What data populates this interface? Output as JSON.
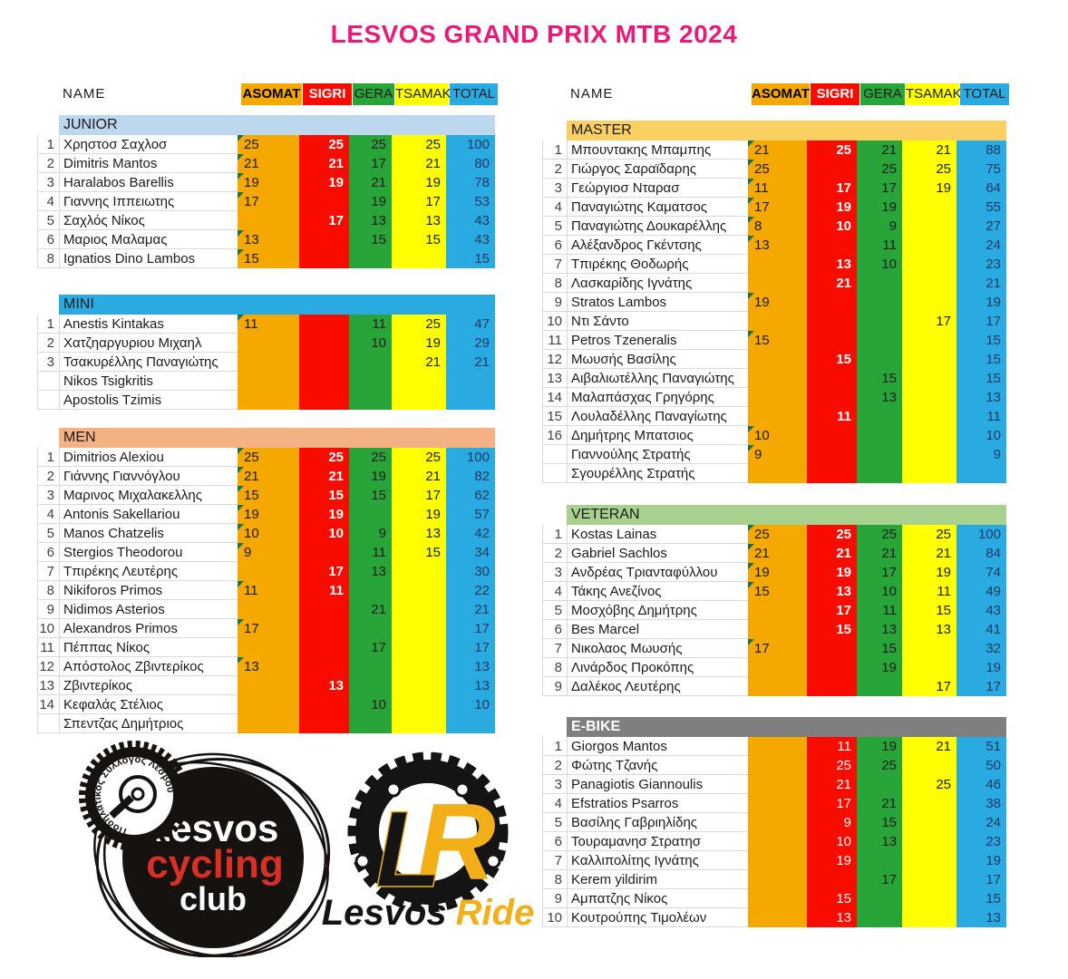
{
  "title": "LESVOS GRAND PRIX MTB 2024",
  "title_color": "#EB1A78",
  "name_header": "NAME",
  "grid_color": "#D9D9D9",
  "total_text_color": "#1F3864",
  "flag_color": "#1E7145",
  "columns": [
    {
      "label": "ASOMAT",
      "color": "#F5A800",
      "text": "#000000",
      "bold": true
    },
    {
      "label": "SIGRI",
      "color": "#F90B00",
      "text": "#FFFFFF",
      "bold": true
    },
    {
      "label": "GERA",
      "color": "#27A539",
      "text": "#1A1A1A",
      "bold": false
    },
    {
      "label": "TSAMAK",
      "color": "#FFFF00",
      "text": "#1A1A1A",
      "bold": false
    },
    {
      "label": "TOTAL",
      "color": "#29ABE2",
      "text": "#1A1A1A",
      "bold": false
    }
  ],
  "panels": {
    "left": {
      "sections": [
        {
          "label": "JUNIOR",
          "band_color": "#BDD7EE",
          "label_color": "#1A1A1A",
          "label_bold": false,
          "sigri_bold": true,
          "rows": [
            [
              "1",
              "Χρηστοσ Σαχλοσ",
              "25",
              "25",
              "25",
              "25",
              "100"
            ],
            [
              "2",
              "Dimitris Mantos",
              "21",
              "21",
              "17",
              "21",
              "80"
            ],
            [
              "3",
              "Haralabos Barellis",
              "19",
              "19",
              "21",
              "19",
              "78"
            ],
            [
              "4",
              "Γιαννης Ιππειωτης",
              "17",
              "",
              "19",
              "17",
              "53"
            ],
            [
              "5",
              "Σαχλός Νίκος",
              "",
              "17",
              "13",
              "13",
              "43"
            ],
            [
              "6",
              "Μαριος Μαλαμας",
              "13",
              "",
              "15",
              "15",
              "43"
            ],
            [
              "8",
              "Ignatios Dino Lambos",
              "15",
              "",
              "",
              "",
              "15"
            ]
          ]
        },
        {
          "label": "MINI",
          "band_color": "#29ABE2",
          "label_color": "#1A1A1A",
          "label_bold": false,
          "sigri_bold": true,
          "rows": [
            [
              "1",
              "Anestis Kintakas",
              "11",
              "",
              "11",
              "25",
              "47"
            ],
            [
              "2",
              "Χατζηαργυριου Μιχαηλ",
              "",
              "",
              "10",
              "19",
              "29"
            ],
            [
              "3",
              "Τσακυρέλλης Παναγιώτης",
              "",
              "",
              "",
              "21",
              "21"
            ],
            [
              "",
              "Nikos Tsigkritis",
              "",
              "",
              "",
              "",
              ""
            ],
            [
              "",
              "Apostolis Tzimis",
              "",
              "",
              "",
              "",
              ""
            ]
          ]
        },
        {
          "label": "MEN",
          "band_color": "#F4B183",
          "label_color": "#1A1A1A",
          "label_bold": false,
          "sigri_bold": true,
          "rows": [
            [
              "1",
              "Dimitrios Alexiou",
              "25",
              "25",
              "25",
              "25",
              "100"
            ],
            [
              "2",
              "Γιάννης Γιαννόγλου",
              "21",
              "21",
              "19",
              "21",
              "82"
            ],
            [
              "3",
              "Μαρινος Μιχαλακελλης",
              "15",
              "15",
              "15",
              "17",
              "62"
            ],
            [
              "4",
              "Antonis Sakellariou",
              "19",
              "19",
              "",
              "19",
              "57"
            ],
            [
              "5",
              "Manos Chatzelis",
              "10",
              "10",
              "9",
              "13",
              "42"
            ],
            [
              "6",
              "Stergios Theodorou",
              "9",
              "",
              "11",
              "15",
              "34"
            ],
            [
              "7",
              "Τπιρέκης Λευτέρης",
              "",
              "17",
              "13",
              "",
              "30"
            ],
            [
              "8",
              "Nikiforos Primos",
              "11",
              "11",
              "",
              "",
              "22"
            ],
            [
              "9",
              "Nidimos Asterios",
              "",
              "",
              "21",
              "",
              "21"
            ],
            [
              "10",
              "Alexandros Primos",
              "17",
              "",
              "",
              "",
              "17"
            ],
            [
              "11",
              "Πέππας Νίκος",
              "",
              "",
              "17",
              "",
              "17"
            ],
            [
              "12",
              "Απόστολος Ζβιντερίκος",
              "13",
              "",
              "",
              "",
              "13"
            ],
            [
              "13",
              "Ζβιντερίκος",
              "",
              "13",
              "",
              "",
              "13"
            ],
            [
              "14",
              "Κεφαλάς Στέλιος",
              "",
              "",
              "10",
              "",
              "10"
            ],
            [
              "",
              "Σπεντζας Δημήτριος",
              "",
              "",
              "",
              "",
              ""
            ]
          ]
        }
      ]
    },
    "right": {
      "sections": [
        {
          "label": "MASTER",
          "band_color": "#FBD062",
          "label_color": "#1A1A1A",
          "label_bold": false,
          "sigri_bold": true,
          "rows": [
            [
              "1",
              "Μπουντακης Μπαμπης",
              "21",
              "25",
              "21",
              "21",
              "88"
            ],
            [
              "2",
              "Γιώργος Σαραϊδαρης",
              "25",
              "",
              "25",
              "25",
              "75"
            ],
            [
              "3",
              "Γεώργιοσ Νταρασ",
              "11",
              "17",
              "17",
              "19",
              "64"
            ],
            [
              "4",
              "Παναγιώτης Καματσος",
              "17",
              "19",
              "19",
              "",
              "55"
            ],
            [
              "5",
              "Παναγιώτης Δουκαρέλλης",
              "8",
              "10",
              "9",
              "",
              "27"
            ],
            [
              "6",
              "Αλέξανδρος Γκέντσης",
              "13",
              "",
              "11",
              "",
              "24"
            ],
            [
              "7",
              "Τπιρέκης Θοδωρής",
              "",
              "13",
              "10",
              "",
              "23"
            ],
            [
              "8",
              "Λασκαρίδης Ιγνάτης",
              "",
              "21",
              "",
              "",
              "21"
            ],
            [
              "9",
              "Stratos Lambos",
              "19",
              "",
              "",
              "",
              "19"
            ],
            [
              "10",
              "Ντι Σάντο",
              "",
              "",
              "",
              "17",
              "17"
            ],
            [
              "11",
              "Petros Tzeneralis",
              "15",
              "",
              "",
              "",
              "15"
            ],
            [
              "12",
              "Μωυσής Βασίλης",
              "",
              "15",
              "",
              "",
              "15"
            ],
            [
              "13",
              "Αιβαλιωτέλλης Παναγιώτης",
              "",
              "",
              "15",
              "",
              "15"
            ],
            [
              "14",
              "Μαλαπάσχας Γρηγόρης",
              "",
              "",
              "13",
              "",
              "13"
            ],
            [
              "15",
              "Λουλαδέλλης Παναγίωτης",
              "",
              "11",
              "",
              "",
              "11"
            ],
            [
              "16",
              "Δημήτρης Μπατσιος",
              "10",
              "",
              "",
              "",
              "10"
            ],
            [
              "",
              "Γιαννούλης Στρατής",
              "9",
              "",
              "",
              "",
              "9"
            ],
            [
              "",
              "Σγουρέλλης Στρατής",
              "",
              "",
              "",
              "",
              ""
            ]
          ]
        },
        {
          "label": "VETERAN",
          "band_color": "#A9D18E",
          "label_color": "#1A1A1A",
          "label_bold": false,
          "sigri_bold": true,
          "rows": [
            [
              "1",
              "Kostas Lainas",
              "25",
              "25",
              "25",
              "25",
              "100"
            ],
            [
              "2",
              "Gabriel Sachlos",
              "21",
              "21",
              "21",
              "21",
              "84"
            ],
            [
              "3",
              "Ανδρέας Τριανταφύλλου",
              "19",
              "19",
              "17",
              "19",
              "74"
            ],
            [
              "4",
              "Τάκης Ανεζίνος",
              "15",
              "13",
              "10",
              "11",
              "49"
            ],
            [
              "5",
              "Μοσχόβης Δημήτρης",
              "",
              "17",
              "11",
              "15",
              "43"
            ],
            [
              "6",
              "Bes Marcel",
              "",
              "15",
              "13",
              "13",
              "41"
            ],
            [
              "7",
              "Νικολαος Μωυσής",
              "17",
              "",
              "15",
              "",
              "32"
            ],
            [
              "8",
              "Λινάρδος Προκόπης",
              "",
              "",
              "19",
              "",
              "19"
            ],
            [
              "9",
              "Δαλέκος Λευτέρης",
              "",
              "",
              "",
              "17",
              "17"
            ]
          ]
        },
        {
          "label": "E-BIKE",
          "band_color": "#7F7F7F",
          "label_color": "#FFFFFF",
          "label_bold": true,
          "sigri_bold": false,
          "rows": [
            [
              "1",
              "Giorgos Mantos",
              "",
              "11",
              "19",
              "21",
              "51"
            ],
            [
              "2",
              "Φώτης Τζανής",
              "",
              "25",
              "25",
              "",
              "50"
            ],
            [
              "3",
              "Panagiotis Giannoulis",
              "",
              "21",
              "",
              "25",
              "46"
            ],
            [
              "4",
              "Efstratios Psarros",
              "",
              "17",
              "21",
              "",
              "38"
            ],
            [
              "5",
              "Βασίλης Γαβριηλίδης",
              "",
              "9",
              "15",
              "",
              "24"
            ],
            [
              "6",
              "Τουραμανησ Στρατησ",
              "",
              "10",
              "13",
              "",
              "23"
            ],
            [
              "7",
              "Καλλιπολίτης Ιγνάτης",
              "",
              "19",
              "",
              "",
              "19"
            ],
            [
              "8",
              "Kerem yildirim",
              "",
              "",
              "17",
              "",
              "17"
            ],
            [
              "9",
              "Αμπατζης Νίκος",
              "",
              "15",
              "",
              "",
              "15"
            ],
            [
              "10",
              "Κουτρούπης Τιμολέων",
              "",
              "13",
              "",
              "",
              "13"
            ]
          ]
        }
      ]
    }
  },
  "logos": {
    "club": {
      "word1": "Lesvos",
      "word2": "cycling",
      "word3": "club",
      "badge_text": "Ποδηλατικός Σύλλογος Λέσβου",
      "accent": "#D93025",
      "ink": "#16120F"
    },
    "ride": {
      "monogram_l": "L",
      "monogram_r": "R",
      "word1": "Lesvos",
      "word2": "Ride",
      "gold": "#F2AF17",
      "ink": "#141414"
    }
  }
}
